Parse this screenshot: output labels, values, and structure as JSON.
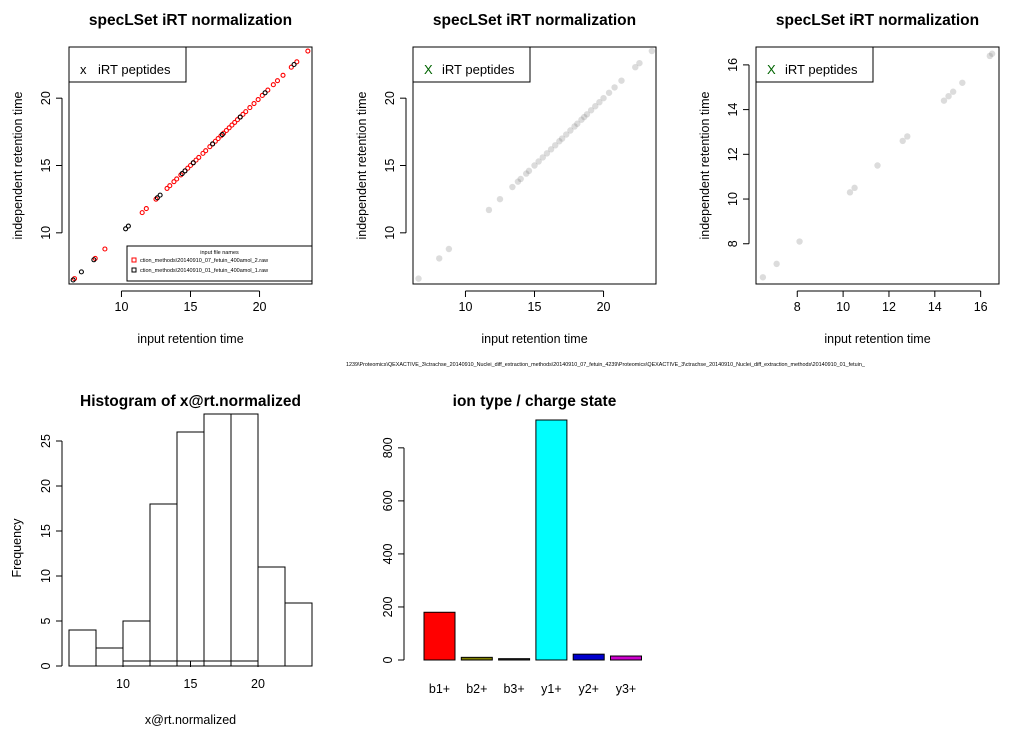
{
  "footnote": "1239\\Proteomics\\QEXACTIVE_3\\ctrachse_20140910_Nuclei_diff_extraction_methods\\20140910_07_fetuin_4239\\Proteomics\\QEXACTIVE_3\\ctrachse_20140910_Nuclei_diff_extraction_methods\\20140910_01_fetuin_",
  "chart_data": [
    {
      "id": "panel1",
      "type": "scatter",
      "title": "specLSet iRT normalization",
      "xlabel": "input retention time",
      "ylabel": "independent retention time",
      "xlim": [
        6.2,
        23.8
      ],
      "ylim": [
        6.2,
        23.8
      ],
      "xticks": [
        10,
        15,
        20
      ],
      "yticks": [
        10,
        15,
        20
      ],
      "legend": {
        "marker": "x",
        "text": "iRT peptides",
        "color": "#000000",
        "placement": "top-left"
      },
      "file_legend": {
        "title": "input file names",
        "placement": "bottom-right",
        "entries": [
          {
            "label": "ction_methods\\20140910_07_fetuin_400amol_2.raw",
            "color": "#ff0000"
          },
          {
            "label": "ction_methods\\20140910_01_fetuin_400amol_1.raw",
            "color": "#000000"
          }
        ]
      },
      "series": [
        {
          "name": "ction_methods\\20140910_07_fetuin_400amol_2.raw",
          "color": "#ff0000",
          "x": [
            6.6,
            8.1,
            8.8,
            11.5,
            11.8,
            12.5,
            13.3,
            13.5,
            13.8,
            14.0,
            14.3,
            14.6,
            14.8,
            15.0,
            15.2,
            15.4,
            15.6,
            15.9,
            16.1,
            16.4,
            16.6,
            16.8,
            17.0,
            17.2,
            17.4,
            17.6,
            17.8,
            18.0,
            18.2,
            18.4,
            18.6,
            18.8,
            19.0,
            19.3,
            19.6,
            19.9,
            20.2,
            20.6,
            21.0,
            21.3,
            21.7,
            22.3,
            22.7,
            23.5
          ],
          "y": [
            6.6,
            8.1,
            8.8,
            11.5,
            11.8,
            12.5,
            13.3,
            13.5,
            13.8,
            14.0,
            14.3,
            14.6,
            14.8,
            15.0,
            15.2,
            15.4,
            15.6,
            15.9,
            16.1,
            16.4,
            16.6,
            16.8,
            17.0,
            17.2,
            17.4,
            17.6,
            17.8,
            18.0,
            18.2,
            18.4,
            18.6,
            18.8,
            19.0,
            19.3,
            19.6,
            19.9,
            20.2,
            20.6,
            21.0,
            21.3,
            21.7,
            22.3,
            22.7,
            23.5
          ]
        },
        {
          "name": "ction_methods\\20140910_01_fetuin_400amol_1.raw",
          "color": "#000000",
          "x": [
            6.5,
            7.1,
            8.0,
            10.3,
            10.5,
            12.6,
            12.8,
            14.4,
            14.6,
            15.2,
            16.6,
            17.3,
            18.6,
            20.4,
            22.5
          ],
          "y": [
            6.5,
            7.1,
            8.0,
            10.3,
            10.5,
            12.6,
            12.8,
            14.4,
            14.6,
            15.2,
            16.6,
            17.3,
            18.6,
            20.4,
            22.5
          ]
        }
      ]
    },
    {
      "id": "panel2",
      "type": "scatter",
      "title": "specLSet iRT normalization",
      "xlabel": "input retention time",
      "ylabel": "independent retention time",
      "xlim": [
        6.2,
        23.8
      ],
      "ylim": [
        6.2,
        23.8
      ],
      "xticks": [
        10,
        15,
        20
      ],
      "yticks": [
        10,
        15,
        20
      ],
      "legend": {
        "marker": "X",
        "text": "iRT peptides",
        "color": "#006400",
        "placement": "top-left"
      },
      "series": [
        {
          "color": "#808080",
          "x": [
            6.6,
            8.1,
            8.8,
            11.7,
            12.5,
            13.4,
            13.8,
            14.0,
            14.4,
            14.6,
            15.0,
            15.3,
            15.6,
            15.9,
            16.2,
            16.5,
            16.8,
            17.0,
            17.3,
            17.6,
            17.9,
            18.1,
            18.4,
            18.6,
            18.8,
            19.1,
            19.4,
            19.7,
            20.0,
            20.4,
            20.8,
            21.3,
            22.3,
            22.6,
            23.5
          ],
          "y": [
            6.6,
            8.1,
            8.8,
            11.7,
            12.5,
            13.4,
            13.8,
            14.0,
            14.4,
            14.6,
            15.0,
            15.3,
            15.6,
            15.9,
            16.2,
            16.5,
            16.8,
            17.0,
            17.3,
            17.6,
            17.9,
            18.1,
            18.4,
            18.6,
            18.8,
            19.1,
            19.4,
            19.7,
            20.0,
            20.4,
            20.8,
            21.3,
            22.3,
            22.6,
            23.5
          ]
        }
      ]
    },
    {
      "id": "panel3",
      "type": "scatter",
      "title": "specLSet iRT normalization",
      "xlabel": "input retention time",
      "ylabel": "independent retention time",
      "xlim": [
        6.2,
        16.8
      ],
      "ylim": [
        6.2,
        16.8
      ],
      "xticks": [
        8,
        10,
        12,
        14,
        16
      ],
      "yticks": [
        8,
        10,
        12,
        14,
        16
      ],
      "legend": {
        "marker": "X",
        "text": "iRT peptides",
        "color": "#006400",
        "placement": "top-left"
      },
      "series": [
        {
          "color": "#808080",
          "x": [
            6.5,
            7.1,
            8.1,
            10.3,
            10.5,
            11.5,
            12.6,
            12.8,
            14.4,
            14.6,
            14.8,
            15.2,
            16.4,
            16.5
          ],
          "y": [
            6.5,
            7.1,
            8.1,
            10.3,
            10.5,
            11.5,
            12.6,
            12.8,
            14.4,
            14.6,
            14.8,
            15.2,
            16.4,
            16.5
          ]
        }
      ]
    },
    {
      "id": "panel4",
      "type": "bar",
      "subtype": "histogram",
      "title": "Histogram of x@rt.normalized",
      "xlabel": "x@rt.normalized",
      "ylabel": "Frequency",
      "bin_edges": [
        6,
        8,
        10,
        12,
        14,
        16,
        18,
        20,
        22,
        24
      ],
      "values": [
        4,
        2,
        5,
        18,
        26,
        28,
        28,
        11,
        7
      ],
      "xlim": [
        6,
        24
      ],
      "ylim": [
        0,
        28
      ],
      "xticks": [
        10,
        15,
        20
      ],
      "yticks": [
        0,
        5,
        10,
        15,
        20,
        25
      ]
    },
    {
      "id": "panel5",
      "type": "bar",
      "title": "ion type / charge state",
      "categories": [
        "b1+",
        "b2+",
        "b3+",
        "y1+",
        "y2+",
        "y3+"
      ],
      "values": [
        180,
        10,
        5,
        905,
        22,
        15
      ],
      "colors": [
        "#ff0000",
        "#808000",
        "#333333",
        "#00ffff",
        "#0000cd",
        "#cd00cd"
      ],
      "ylim": [
        0,
        905
      ],
      "yticks": [
        0,
        200,
        400,
        600,
        800
      ]
    }
  ]
}
